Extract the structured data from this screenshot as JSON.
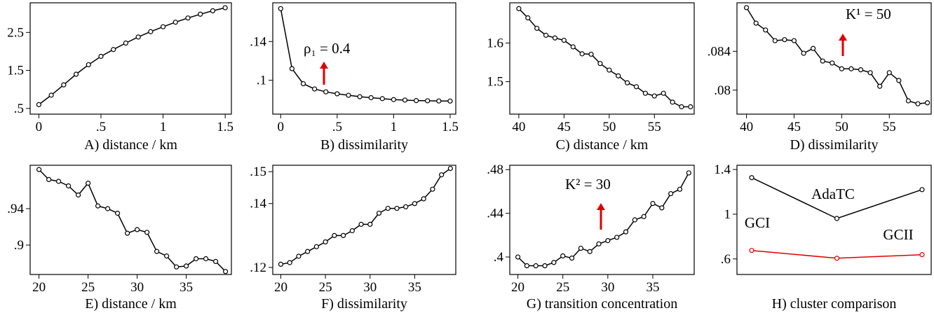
{
  "chart_data": [
    {
      "type": "line",
      "xlabel": "A) distance / km",
      "x": [
        0,
        0.1,
        0.2,
        0.3,
        0.4,
        0.5,
        0.6,
        0.7,
        0.8,
        0.9,
        1.0,
        1.1,
        1.2,
        1.3,
        1.4,
        1.5
      ],
      "values": [
        0.6,
        0.85,
        1.12,
        1.4,
        1.65,
        1.87,
        2.05,
        2.22,
        2.38,
        2.52,
        2.65,
        2.77,
        2.88,
        2.98,
        3.07,
        3.15
      ],
      "color": "#000000",
      "xlim": [
        -0.07,
        1.55
      ],
      "ylim": [
        0.35,
        3.28
      ],
      "xticks": [
        0,
        {
          "value": 0.5,
          "label": ".5"
        },
        1,
        1.5
      ],
      "yticks": [
        {
          "value": 0.5,
          "label": ".5"
        },
        1.5,
        2.5
      ]
    },
    {
      "type": "line",
      "xlabel": "B) dissimilarity",
      "x": [
        0,
        0.1,
        0.2,
        0.3,
        0.4,
        0.5,
        0.6,
        0.7,
        0.8,
        0.9,
        1.0,
        1.1,
        1.2,
        1.3,
        1.4,
        1.5
      ],
      "values": [
        0.174,
        0.112,
        0.0964,
        0.091,
        0.088,
        0.086,
        0.0845,
        0.083,
        0.082,
        0.081,
        0.08,
        0.0795,
        0.079,
        0.0788,
        0.0786,
        0.0785
      ],
      "color": "#000000",
      "xlim": [
        -0.07,
        1.55
      ],
      "ylim": [
        0.065,
        0.18
      ],
      "xticks": [
        0,
        {
          "value": 0.5,
          "label": ".5"
        },
        1,
        1.5
      ],
      "yticks": [
        {
          "value": 0.1,
          "label": ".1"
        },
        {
          "value": 0.14,
          "label": ".14"
        }
      ],
      "annotations": [
        "ρ₁ = 0.4"
      ]
    },
    {
      "type": "line",
      "xlabel": "C) distance / km",
      "x": [
        40,
        41,
        42,
        43,
        44,
        45,
        46,
        47,
        48,
        49,
        50,
        51,
        52,
        53,
        54,
        55,
        56,
        57,
        58,
        59
      ],
      "values": [
        1.689,
        1.665,
        1.638,
        1.62,
        1.613,
        1.607,
        1.59,
        1.572,
        1.571,
        1.547,
        1.53,
        1.515,
        1.497,
        1.487,
        1.47,
        1.463,
        1.47,
        1.447,
        1.435,
        1.435
      ],
      "color": "#000000",
      "xlim": [
        39,
        59.4
      ],
      "ylim": [
        1.416,
        1.704
      ],
      "xticks": [
        40,
        45,
        50,
        55
      ],
      "yticks": [
        1.5,
        1.6
      ]
    },
    {
      "type": "line",
      "xlabel": "D) dissimilarity",
      "x": [
        40,
        41,
        42,
        43,
        44,
        45,
        46,
        47,
        48,
        49,
        50,
        51,
        52,
        53,
        54,
        55,
        56,
        57,
        58,
        59
      ],
      "values": [
        0.0885,
        0.0869,
        0.0862,
        0.0851,
        0.0852,
        0.0851,
        0.0838,
        0.0843,
        0.083,
        0.0828,
        0.0822,
        0.0822,
        0.0821,
        0.0818,
        0.0804,
        0.0818,
        0.081,
        0.0789,
        0.0786,
        0.0787
      ],
      "color": "#000000",
      "xlim": [
        39,
        59.4
      ],
      "ylim": [
        0.07753,
        0.089
      ],
      "xticks": [
        40,
        45,
        50,
        55
      ],
      "yticks": [
        {
          "value": 0.08,
          "label": ".08"
        },
        {
          "value": 0.084,
          "label": ".084"
        }
      ],
      "annotations": [
        "K¹ = 50"
      ]
    },
    {
      "type": "line",
      "xlabel": "E) distance / km",
      "x": [
        20,
        21,
        22,
        23,
        24,
        25,
        26,
        27,
        28,
        29,
        30,
        31,
        32,
        33,
        34,
        35,
        36,
        37,
        38,
        39
      ],
      "values": [
        0.983,
        0.972,
        0.97,
        0.965,
        0.955,
        0.968,
        0.943,
        0.94,
        0.935,
        0.913,
        0.917,
        0.914,
        0.893,
        0.888,
        0.876,
        0.877,
        0.885,
        0.885,
        0.882,
        0.871
      ],
      "color": "#000000",
      "xlim": [
        19.1,
        39.6
      ],
      "ylim": [
        0.8677,
        0.9877
      ],
      "xticks": [
        20,
        25,
        30,
        35
      ],
      "yticks": [
        {
          "value": 0.9,
          "label": ".9"
        },
        {
          "value": 0.94,
          "label": ".94"
        }
      ]
    },
    {
      "type": "line",
      "xlabel": "F) dissimilarity",
      "x": [
        20,
        21,
        22,
        23,
        24,
        25,
        26,
        27,
        28,
        29,
        30,
        31,
        32,
        33,
        34,
        35,
        36,
        37,
        38,
        39
      ],
      "values": [
        0.121,
        0.1215,
        0.1235,
        0.125,
        0.1265,
        0.128,
        0.13,
        0.13,
        0.1315,
        0.1335,
        0.1335,
        0.137,
        0.1385,
        0.1385,
        0.139,
        0.14,
        0.1415,
        0.1445,
        0.149,
        0.151
      ],
      "color": "#000000",
      "xlim": [
        19.1,
        39.6
      ],
      "ylim": [
        0.1178,
        0.152
      ],
      "xticks": [
        20,
        25,
        30,
        35
      ],
      "yticks": [
        {
          "value": 0.12,
          "label": ".12"
        },
        {
          "value": 0.14,
          "label": ".14"
        },
        {
          "value": 0.15,
          "label": ".15"
        }
      ]
    },
    {
      "type": "line",
      "xlabel": "G) transition concentration",
      "x": [
        20,
        21,
        22,
        23,
        24,
        25,
        26,
        27,
        28,
        29,
        30,
        31,
        32,
        33,
        34,
        35,
        36,
        37,
        38,
        39
      ],
      "values": [
        0.4,
        0.392,
        0.392,
        0.392,
        0.395,
        0.401,
        0.399,
        0.408,
        0.405,
        0.412,
        0.415,
        0.418,
        0.423,
        0.434,
        0.437,
        0.449,
        0.445,
        0.458,
        0.462,
        0.477
      ],
      "color": "#000000",
      "xlim": [
        19.1,
        39.6
      ],
      "ylim": [
        0.384,
        0.484
      ],
      "xticks": [
        20,
        25,
        30,
        35
      ],
      "yticks": [
        {
          "value": 0.4,
          "label": ".4"
        },
        {
          "value": 0.44,
          "label": ".44"
        },
        {
          "value": 0.48,
          "label": ".48"
        }
      ],
      "annotations": [
        "K² = 30"
      ]
    },
    {
      "type": "line",
      "xlabel": "H) cluster comparison",
      "categories": [
        null,
        null,
        null
      ],
      "series": [
        {
          "color": "#000000",
          "values": [
            1.327,
            0.962,
            1.22
          ]
        },
        {
          "color": "#e00000",
          "values": [
            0.676,
            0.606,
            0.638
          ]
        }
      ],
      "ylim": [
        0.461,
        1.438
      ],
      "yticks": [
        {
          "value": 0.6,
          "label": ".6"
        },
        1,
        1.4
      ],
      "annotations": [
        "GCI",
        "AdaTC",
        "GCII"
      ]
    }
  ]
}
